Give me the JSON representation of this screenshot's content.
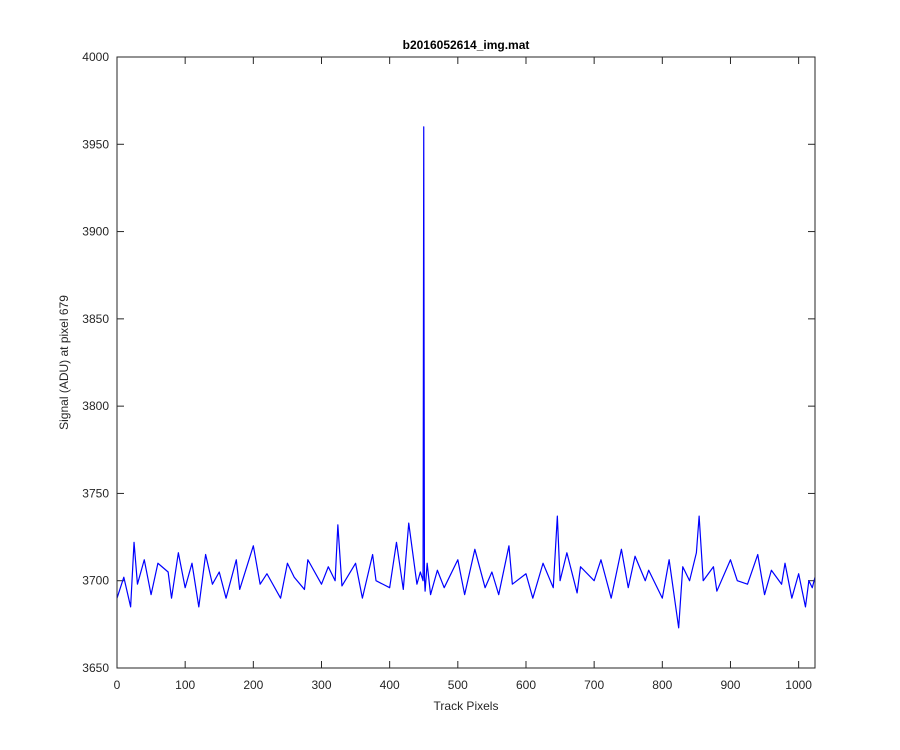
{
  "chart_data": {
    "type": "line",
    "title": "b2016052614_img.mat",
    "xlabel": "Track Pixels",
    "ylabel": "Signal (ADU) at pixel 679",
    "xlim": [
      0,
      1024
    ],
    "ylim": [
      3650,
      4000
    ],
    "xticks": [
      "0",
      "100",
      "200",
      "300",
      "400",
      "500",
      "600",
      "700",
      "800",
      "900",
      "1000"
    ],
    "yticks": [
      "3650",
      "3700",
      "3750",
      "3800",
      "3850",
      "3900",
      "3950",
      "4000"
    ],
    "grid": false,
    "line_color": "#0000ff",
    "series": [
      {
        "x": [
          0,
          10,
          20,
          25,
          30,
          40,
          50,
          60,
          75,
          80,
          90,
          100,
          110,
          120,
          130,
          140,
          150,
          160,
          175,
          180,
          200,
          210,
          220,
          240,
          250,
          260,
          275,
          280,
          300,
          310,
          320,
          324,
          330,
          350,
          360,
          375,
          380,
          400,
          410,
          420,
          428,
          440,
          445,
          449,
          450,
          451,
          452,
          455,
          460,
          470,
          480,
          500,
          510,
          525,
          540,
          550,
          560,
          575,
          580,
          600,
          610,
          625,
          640,
          646,
          650,
          660,
          675,
          680,
          700,
          710,
          725,
          740,
          750,
          760,
          775,
          780,
          800,
          810,
          824,
          830,
          840,
          850,
          854,
          860,
          875,
          880,
          900,
          910,
          925,
          940,
          950,
          960,
          975,
          980,
          990,
          1000,
          1010,
          1015,
          1020,
          1024
        ],
        "y": [
          3690,
          3702,
          3685,
          3722,
          3698,
          3712,
          3692,
          3710,
          3705,
          3690,
          3716,
          3696,
          3710,
          3685,
          3715,
          3698,
          3705,
          3690,
          3712,
          3695,
          3720,
          3698,
          3704,
          3690,
          3710,
          3702,
          3695,
          3712,
          3698,
          3708,
          3700,
          3732,
          3697,
          3710,
          3690,
          3715,
          3700,
          3696,
          3722,
          3695,
          3733,
          3698,
          3705,
          3700,
          3960,
          3702,
          3694,
          3710,
          3692,
          3706,
          3696,
          3712,
          3692,
          3718,
          3696,
          3705,
          3692,
          3720,
          3698,
          3704,
          3690,
          3710,
          3696,
          3737,
          3700,
          3716,
          3693,
          3708,
          3700,
          3712,
          3690,
          3718,
          3696,
          3714,
          3700,
          3706,
          3690,
          3712,
          3673,
          3708,
          3700,
          3716,
          3737,
          3700,
          3708,
          3694,
          3712,
          3700,
          3698,
          3715,
          3692,
          3706,
          3698,
          3710,
          3690,
          3704,
          3685,
          3700,
          3696,
          3702
        ]
      }
    ]
  }
}
